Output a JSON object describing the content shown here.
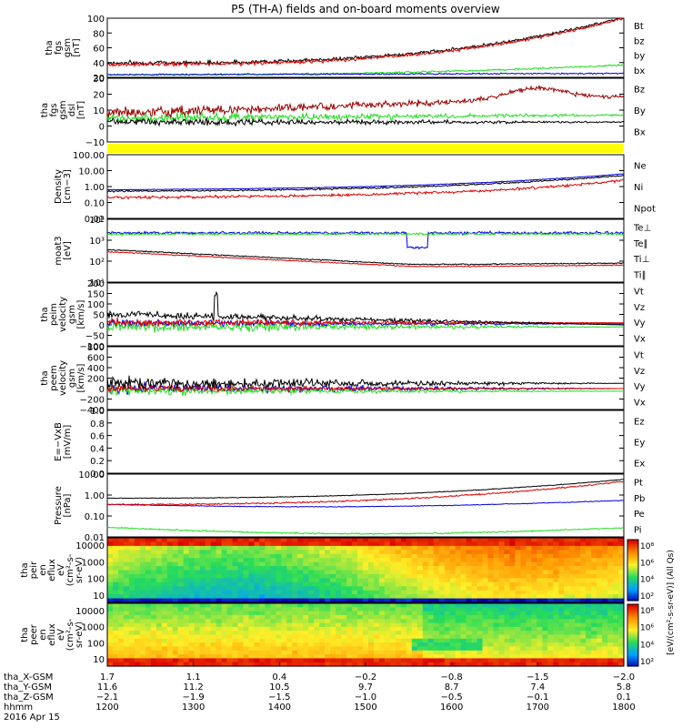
{
  "title": "P5 (TH-A) fields and on-board moments overview",
  "colors": {
    "black": "#000000",
    "red": "#dd0000",
    "green": "#22dd22",
    "blue": "#0000dd",
    "darkred": "#990000",
    "yellow": "#ffff00"
  },
  "chart_data": [
    {
      "type": "line",
      "ylabel": [
        "tha",
        "fgs",
        "gsm",
        "[nT]"
      ],
      "ylim": [
        10,
        100
      ],
      "yticks": [
        "100",
        "80",
        "60",
        "40",
        "20"
      ],
      "series": [
        {
          "name": "Bt",
          "color": "black"
        },
        {
          "name": "bz",
          "color": "red"
        },
        {
          "name": "by",
          "color": "green"
        },
        {
          "name": "bx",
          "color": "blue"
        }
      ]
    },
    {
      "type": "line",
      "ylabel": [
        "tha",
        "fgs",
        "gsm",
        "dsl",
        "[nT]"
      ],
      "ylim": [
        -15,
        30
      ],
      "yticks": [
        "30",
        "20",
        "10",
        "0",
        "−10"
      ],
      "series": [
        {
          "name": "Bz",
          "color": "darkred"
        },
        {
          "name": "By",
          "color": "green"
        },
        {
          "name": "Bx",
          "color": "black"
        }
      ]
    },
    {
      "type": "line",
      "ylabel": [
        "Density",
        "[cm−3]"
      ],
      "ylim": [
        0.01,
        100
      ],
      "yscale": "log",
      "yticks": [
        "100.00",
        "10.00",
        "1.00",
        "0.10",
        "0.01"
      ],
      "series": [
        {
          "name": "Ne",
          "color": "red"
        },
        {
          "name": "Ni",
          "color": "black"
        },
        {
          "name": "Npot",
          "color": "blue"
        }
      ]
    },
    {
      "type": "line",
      "ylabel": [
        "moat3",
        "[eV]"
      ],
      "ylim": [
        10,
        10000
      ],
      "yscale": "log",
      "yticks": [
        "10⁴",
        "10³",
        "10²",
        "10¹"
      ],
      "series": [
        {
          "name": "Te⊥",
          "color": "red"
        },
        {
          "name": "Te∥",
          "color": "black"
        },
        {
          "name": "Ti⊥",
          "color": "blue"
        },
        {
          "name": "Ti∥",
          "color": "green"
        }
      ]
    },
    {
      "type": "line",
      "ylabel": [
        "tha",
        "peim",
        "velocity",
        "gsm",
        "[km/s]"
      ],
      "ylim": [
        -100,
        200
      ],
      "yticks": [
        "200",
        "150",
        "100",
        "50",
        "0",
        "−50",
        "−100"
      ],
      "series": [
        {
          "name": "Vt",
          "color": "black"
        },
        {
          "name": "Vz",
          "color": "red"
        },
        {
          "name": "Vy",
          "color": "green"
        },
        {
          "name": "Vx",
          "color": "blue"
        }
      ]
    },
    {
      "type": "line",
      "ylabel": [
        "tha",
        "peem",
        "velocity",
        "gsm",
        "[km/s]"
      ],
      "ylim": [
        -400,
        800
      ],
      "yticks": [
        "800",
        "600",
        "400",
        "200",
        "0",
        "−200",
        "−400"
      ],
      "series": [
        {
          "name": "Vt",
          "color": "black"
        },
        {
          "name": "Vz",
          "color": "red"
        },
        {
          "name": "Vy",
          "color": "green"
        },
        {
          "name": "Vx",
          "color": "blue"
        }
      ]
    },
    {
      "type": "line",
      "ylabel": [
        "E=−VxB",
        "[mV/m]"
      ],
      "ylim": [
        0,
        1
      ],
      "yticks": [
        "1.0",
        "0.8",
        "0.6",
        "0.4",
        "0.2",
        "0.0"
      ],
      "series": [
        {
          "name": "Ez",
          "color": "red"
        },
        {
          "name": "Ey",
          "color": "green"
        },
        {
          "name": "Ex",
          "color": "blue"
        }
      ]
    },
    {
      "type": "line",
      "ylabel": [
        "Pressure",
        "[nPa]"
      ],
      "ylim": [
        0.01,
        10
      ],
      "yscale": "log",
      "yticks": [
        "10.00",
        "1.00",
        "0.10",
        "0.01"
      ],
      "series": [
        {
          "name": "Pt",
          "color": "black"
        },
        {
          "name": "Pb",
          "color": "red"
        },
        {
          "name": "Pe",
          "color": "blue"
        },
        {
          "name": "Pi",
          "color": "green"
        }
      ]
    },
    {
      "type": "heatmap",
      "ylabel": [
        "tha",
        "peir",
        "en",
        "eflux",
        "eV",
        "(cm²-s-",
        "sr-eV)"
      ],
      "ylim": [
        5,
        20000
      ],
      "yscale": "log",
      "yticks": [
        "10000",
        "1000",
        "100",
        "10"
      ]
    },
    {
      "type": "heatmap",
      "ylabel": [
        "tha",
        "peer",
        "en",
        "eflux",
        "eV",
        "(cm²-s-",
        "sr-eV)"
      ],
      "ylim": [
        5,
        20000
      ],
      "yscale": "log",
      "yticks": [
        "10000",
        "1000",
        "100",
        "10"
      ]
    }
  ],
  "colorbar": {
    "label": "[eV/(cm²-s-sr-eV)] (All Qs)",
    "ticks": [
      "10⁸",
      "10⁶",
      "10⁴",
      "10²",
      "10⁸",
      "10⁶",
      "10⁴",
      "10²"
    ]
  },
  "xaxis": {
    "rows": [
      {
        "label": "tha_X-GSM",
        "values": [
          "1.7",
          "1.1",
          "0.4",
          "−0.2",
          "−0.8",
          "−1.5",
          "−2.0"
        ]
      },
      {
        "label": "tha_Y-GSM",
        "values": [
          "11.6",
          "11.2",
          "10.5",
          "9.7",
          "8.7",
          "7.4",
          "5.8"
        ]
      },
      {
        "label": "tha_Z-GSM",
        "values": [
          "−2.1",
          "−1.9",
          "−1.5",
          "−1.0",
          "−0.5",
          "−0.1",
          "0.1"
        ]
      },
      {
        "label": "hhmm",
        "values": [
          "1200",
          "1300",
          "1400",
          "1500",
          "1600",
          "1700",
          "1800"
        ]
      }
    ],
    "date": "2016 Apr 15",
    "time_range_hhmm": [
      1200,
      1800
    ]
  }
}
